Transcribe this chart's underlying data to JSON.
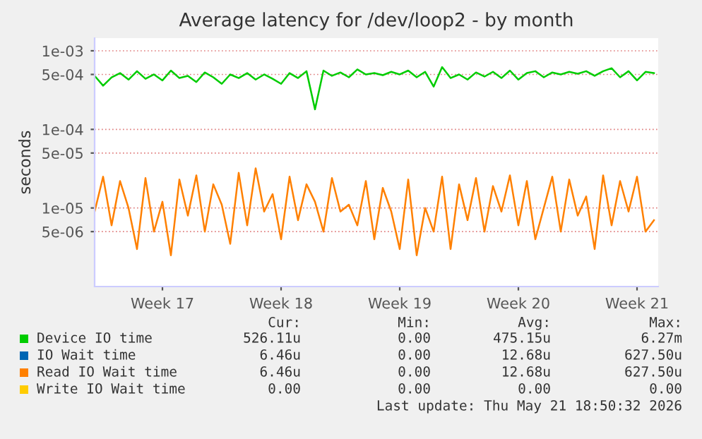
{
  "chart_data": {
    "type": "line",
    "title": "Average latency for /dev/loop2 - by month",
    "ylabel": "seconds",
    "log": "y",
    "ylim": [
      1e-06,
      0.00145
    ],
    "yticks": [
      {
        "value": 0.001,
        "label": "1e-03"
      },
      {
        "value": 0.0005,
        "label": "5e-04"
      },
      {
        "value": 0.0001,
        "label": "1e-04"
      },
      {
        "value": 5e-05,
        "label": "5e-05"
      },
      {
        "value": 1e-05,
        "label": "1e-05"
      },
      {
        "value": 5e-06,
        "label": "5e-06"
      }
    ],
    "grid": "y",
    "legend": "bottom",
    "line_style": "solid",
    "marker": "none",
    "categories": [
      null,
      null,
      null,
      null,
      null,
      null,
      null,
      null,
      "Week 17",
      null,
      null,
      null,
      null,
      null,
      null,
      null,
      null,
      null,
      null,
      null,
      null,
      null,
      "Week 18",
      null,
      null,
      null,
      null,
      null,
      null,
      null,
      null,
      null,
      null,
      null,
      null,
      null,
      "Week 19",
      null,
      null,
      null,
      null,
      null,
      null,
      null,
      null,
      null,
      null,
      null,
      null,
      null,
      "Week 20",
      null,
      null,
      null,
      null,
      null,
      null,
      null,
      null,
      null,
      null,
      null,
      null,
      null,
      "Week 21",
      null,
      null
    ],
    "series": [
      {
        "name": "Device IO time",
        "color": "#00cc00",
        "values": [
          0.00048,
          0.00036,
          0.00046,
          0.00052,
          0.00043,
          0.00055,
          0.00044,
          0.0005,
          0.00042,
          0.00056,
          0.00045,
          0.00048,
          0.0004,
          0.00053,
          0.00046,
          0.00038,
          0.0005,
          0.00045,
          0.00052,
          0.00043,
          0.0005,
          0.00044,
          0.00038,
          0.00052,
          0.00045,
          0.00055,
          0.00018,
          0.00056,
          0.00048,
          0.00053,
          0.00046,
          0.00058,
          0.0005,
          0.00052,
          0.00049,
          0.00054,
          0.0005,
          0.00056,
          0.00046,
          0.00054,
          0.00035,
          0.00062,
          0.00045,
          0.0005,
          0.00043,
          0.00053,
          0.00047,
          0.00054,
          0.00045,
          0.00056,
          0.00043,
          0.00052,
          0.00055,
          0.00046,
          0.00053,
          0.0005,
          0.00054,
          0.00051,
          0.00055,
          0.00048,
          0.00055,
          0.0006,
          0.00046,
          0.00055,
          0.00042,
          0.00054,
          0.00052
        ]
      },
      {
        "name": "IO Wait time",
        "color": "#0066b3",
        "values": [
          null,
          null,
          null,
          null,
          null,
          null,
          null,
          null,
          null,
          null,
          null,
          null,
          null,
          null,
          null,
          null,
          null,
          null,
          null,
          null,
          null,
          null,
          null,
          null,
          null,
          null,
          null,
          null,
          null,
          null,
          null,
          null,
          null,
          null,
          null,
          null,
          null,
          null,
          null,
          null,
          null,
          null,
          null,
          null,
          null,
          null,
          null,
          null,
          null,
          null,
          null,
          null,
          null,
          null,
          null,
          null,
          null,
          null,
          null,
          null,
          null,
          null,
          null,
          null,
          null,
          null,
          null
        ]
      },
      {
        "name": "Read IO Wait time",
        "color": "#ff8000",
        "values": [
          9e-06,
          2.5e-05,
          6e-06,
          2.2e-05,
          1e-05,
          3e-06,
          2.4e-05,
          5e-06,
          1.2e-05,
          2.5e-06,
          2.3e-05,
          8e-06,
          2.6e-05,
          5e-06,
          2e-05,
          1.1e-05,
          3.5e-06,
          2.8e-05,
          6e-06,
          3.2e-05,
          9e-06,
          1.5e-05,
          4e-06,
          2.5e-05,
          7e-06,
          2e-05,
          1.2e-05,
          5e-06,
          2.4e-05,
          9e-06,
          1.1e-05,
          6e-06,
          2.2e-05,
          4e-06,
          1.8e-05,
          9e-06,
          3e-06,
          2.3e-05,
          2.5e-06,
          1e-05,
          5e-06,
          2.5e-05,
          3e-06,
          2e-05,
          7e-06,
          2.4e-05,
          5e-06,
          1.9e-05,
          9e-06,
          2.6e-05,
          6e-06,
          2.2e-05,
          4e-06,
          1e-05,
          2.5e-05,
          5e-06,
          2.3e-05,
          8e-06,
          1.4e-05,
          3e-06,
          2.6e-05,
          6e-06,
          2.2e-05,
          9e-06,
          2.5e-05,
          5e-06,
          7e-06
        ]
      },
      {
        "name": "Write IO Wait time",
        "color": "#ffcc00",
        "values": [
          null,
          null,
          null,
          null,
          null,
          null,
          null,
          null,
          null,
          null,
          null,
          null,
          null,
          null,
          null,
          null,
          null,
          null,
          null,
          null,
          null,
          null,
          null,
          null,
          null,
          null,
          null,
          null,
          null,
          null,
          null,
          null,
          null,
          null,
          null,
          null,
          null,
          null,
          null,
          null,
          null,
          null,
          null,
          null,
          null,
          null,
          null,
          null,
          null,
          null,
          null,
          null,
          null,
          null,
          null,
          null,
          null,
          null,
          null,
          null,
          null,
          null,
          null,
          null,
          null,
          null,
          null
        ]
      }
    ],
    "annotations": [
      "Cur:",
      "Min:",
      "Avg:",
      "Max:",
      "526.11u",
      "0.00",
      "475.15u",
      "6.27m",
      "6.46u",
      "0.00",
      "12.68u",
      "627.50u",
      "6.46u",
      "0.00",
      "12.68u",
      "627.50u",
      "0.00",
      "0.00",
      "0.00",
      "0.00",
      "Last update: Thu May 21 18:50:32 2026"
    ]
  }
}
